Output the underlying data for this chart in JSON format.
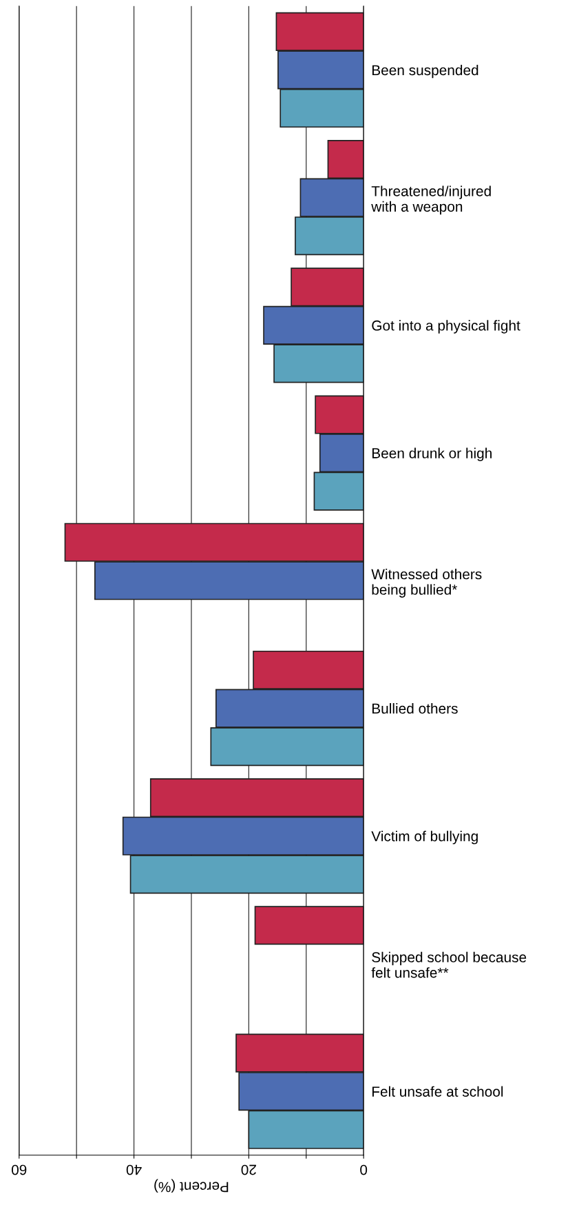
{
  "chart_data": {
    "type": "bar",
    "orientation": "horizontal",
    "xlabel": "Percent (%)",
    "categories": [
      "Been suspended",
      "Threatened/injured\nwith a weapon",
      "Got into a physical fight",
      "Been drunk or high",
      "Witnessed others\nbeing bullied*",
      "Bullied others",
      "Victim of bullying",
      "Skipped school because\nfelt unsafe**",
      "Felt unsafe at school"
    ],
    "series": [
      {
        "color": "#c42a4b",
        "values": [
          15.2,
          6.2,
          12.6,
          8.4,
          52.0,
          19.2,
          37.1,
          18.9,
          22.2
        ]
      },
      {
        "color": "#4d6db3",
        "values": [
          14.9,
          11.0,
          17.4,
          7.6,
          46.8,
          25.7,
          41.9,
          null,
          21.7
        ]
      },
      {
        "color": "#5ba3bd",
        "values": [
          14.5,
          11.9,
          15.6,
          8.6,
          null,
          26.6,
          40.6,
          null,
          20.0
        ]
      }
    ],
    "xlim": [
      60,
      0
    ],
    "xticks": [
      60,
      {
        "value": 50,
        "label": null
      },
      40,
      {
        "value": 30,
        "label": null
      },
      20,
      {
        "value": 10,
        "label": null
      },
      0
    ],
    "grid": "x"
  }
}
